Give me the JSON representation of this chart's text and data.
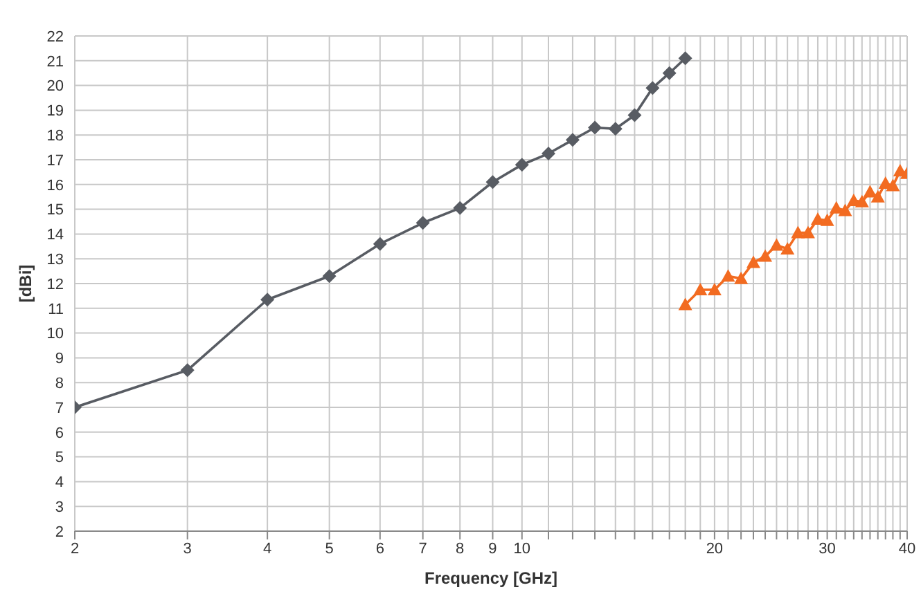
{
  "chart_data": {
    "type": "line",
    "xlabel": "Frequency [GHz]",
    "ylabel": "[dBi]",
    "log": "x",
    "grid": true,
    "legend": false,
    "xlim": [
      2,
      40
    ],
    "xticks": [
      2,
      3,
      4,
      5,
      6,
      7,
      8,
      9,
      10,
      {
        "value": 11,
        "label": null
      },
      {
        "value": 12,
        "label": null
      },
      {
        "value": 13,
        "label": null
      },
      {
        "value": 14,
        "label": null
      },
      {
        "value": 15,
        "label": null
      },
      {
        "value": 16,
        "label": null
      },
      {
        "value": 17,
        "label": null
      },
      {
        "value": 18,
        "label": null
      },
      {
        "value": 19,
        "label": null
      },
      20,
      {
        "value": 21,
        "label": null
      },
      {
        "value": 22,
        "label": null
      },
      {
        "value": 23,
        "label": null
      },
      {
        "value": 24,
        "label": null
      },
      {
        "value": 25,
        "label": null
      },
      {
        "value": 26,
        "label": null
      },
      {
        "value": 27,
        "label": null
      },
      {
        "value": 28,
        "label": null
      },
      {
        "value": 29,
        "label": null
      },
      30,
      {
        "value": 31,
        "label": null
      },
      {
        "value": 32,
        "label": null
      },
      {
        "value": 33,
        "label": null
      },
      {
        "value": 34,
        "label": null
      },
      {
        "value": 35,
        "label": null
      },
      {
        "value": 36,
        "label": null
      },
      {
        "value": 37,
        "label": null
      },
      {
        "value": 38,
        "label": null
      },
      {
        "value": 39,
        "label": null
      },
      40
    ],
    "ylim": [
      2,
      22
    ],
    "yticks": [
      2,
      3,
      4,
      5,
      6,
      7,
      8,
      9,
      10,
      11,
      12,
      13,
      14,
      15,
      16,
      17,
      18,
      19,
      20,
      21,
      22
    ],
    "series": [
      {
        "color": "#585c63",
        "marker": "diamond",
        "x": [
          2,
          3,
          4,
          5,
          6,
          7,
          8,
          9,
          10,
          11,
          12,
          13,
          14,
          15,
          16,
          17,
          18
        ],
        "values": [
          7.0,
          8.5,
          11.35,
          12.3,
          13.6,
          14.45,
          15.05,
          16.1,
          16.8,
          17.25,
          17.8,
          18.3,
          18.25,
          18.8,
          19.9,
          20.5,
          21.1
        ]
      },
      {
        "color": "#f26b21",
        "marker": "triangle",
        "x": [
          18,
          19,
          20,
          21,
          22,
          23,
          24,
          25,
          26,
          27,
          28,
          29,
          30,
          31,
          32,
          33,
          34,
          35,
          36,
          37,
          38,
          39,
          40
        ],
        "values": [
          11.15,
          11.75,
          11.75,
          12.3,
          12.2,
          12.85,
          13.1,
          13.55,
          13.4,
          14.05,
          14.05,
          14.6,
          14.55,
          15.05,
          14.95,
          15.35,
          15.3,
          15.7,
          15.5,
          16.05,
          15.95,
          16.55,
          16.45
        ]
      }
    ]
  }
}
